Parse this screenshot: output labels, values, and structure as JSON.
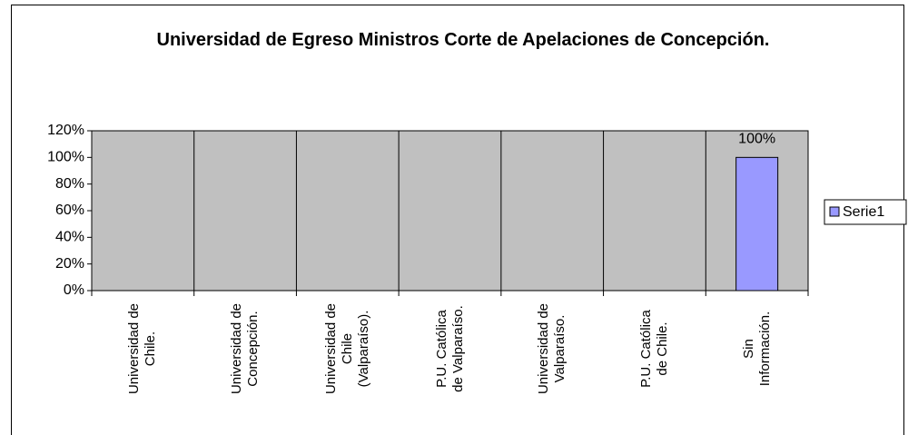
{
  "chart_data": {
    "type": "bar",
    "title": "Universidad de Egreso Ministros Corte de Apelaciones de Concepción.",
    "categories": [
      "Universidad de Chile.",
      "Universidad de Concepción.",
      "Universidad de Chile (Valparaíso).",
      "P.U. Católica de Valparaíso.",
      "Universidad de Valparaíso.",
      "P.U. Católica de Chile.",
      "Sin Información."
    ],
    "series": [
      {
        "name": "Serie1",
        "color": "#9999ff",
        "values": [
          0,
          0,
          0,
          0,
          0,
          0,
          100
        ],
        "value_labels": [
          null,
          null,
          null,
          null,
          null,
          null,
          "100%"
        ]
      }
    ],
    "ylim": [
      0,
      120
    ],
    "yticks": [
      {
        "value": 0,
        "label": "0%"
      },
      {
        "value": 20,
        "label": "20%"
      },
      {
        "value": 40,
        "label": "40%"
      },
      {
        "value": 60,
        "label": "60%"
      },
      {
        "value": 80,
        "label": "80%"
      },
      {
        "value": 100,
        "label": "100%"
      },
      {
        "value": 120,
        "label": "120%"
      }
    ],
    "legend": "right"
  }
}
